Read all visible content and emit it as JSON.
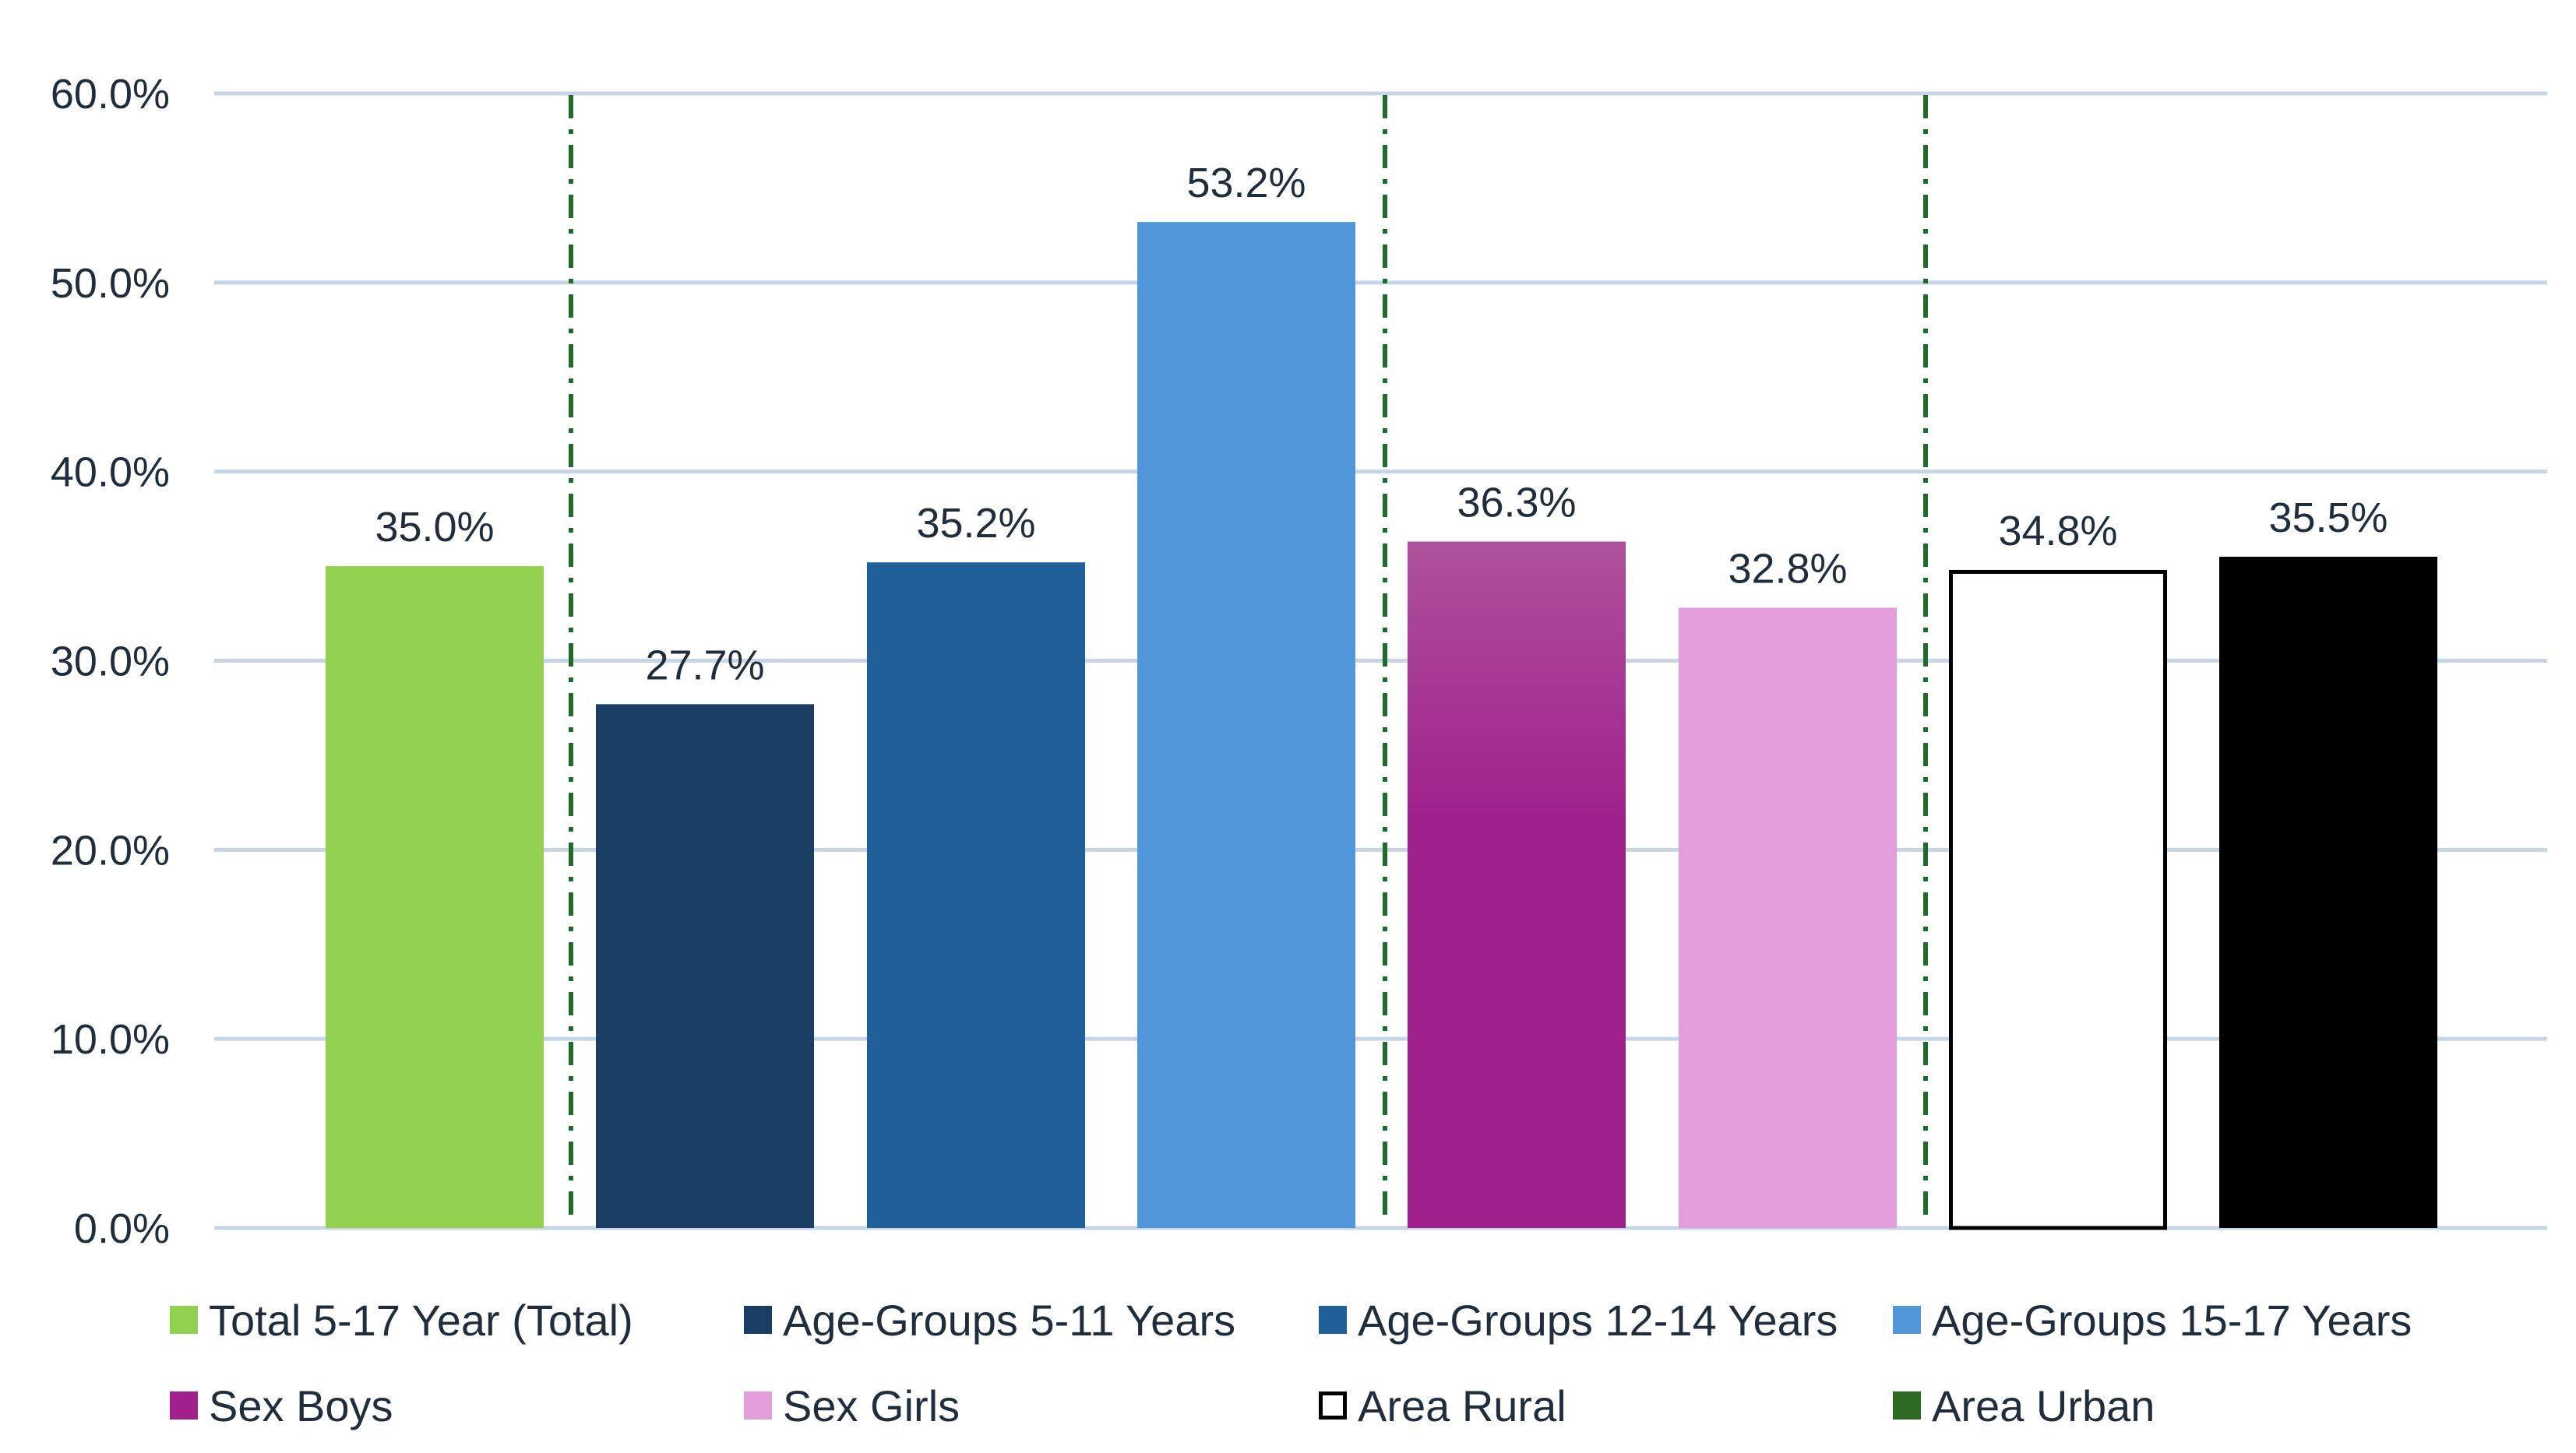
{
  "chart_data": {
    "type": "bar",
    "title": "",
    "xlabel": "",
    "ylabel": "",
    "ylim": [
      0,
      60
    ],
    "y_ticks": [
      "0.0%",
      "10.0%",
      "20.0%",
      "30.0%",
      "40.0%",
      "50.0%",
      "60.0%"
    ],
    "grid": true,
    "legend_position": "bottom",
    "group_separators_after_index": [
      0,
      3,
      5
    ],
    "series": [
      {
        "name": "Total 5-17 Year (Total)",
        "value": 35.0,
        "label": "35.0%",
        "color": "#92d050",
        "legend_color": "#92d050"
      },
      {
        "name": "Age-Groups 5-11 Years",
        "value": 27.7,
        "label": "27.7%",
        "color": "#1a3d63",
        "legend_color": "#1a3d63"
      },
      {
        "name": "Age-Groups 12-14 Years",
        "value": 35.2,
        "label": "35.2%",
        "color": "#215f9a",
        "legend_color": "#215f9a"
      },
      {
        "name": "Age-Groups 15-17 Years",
        "value": 53.2,
        "label": "53.2%",
        "color": "#5196d9",
        "legend_color": "#5196d9"
      },
      {
        "name": "Sex Boys",
        "value": 36.3,
        "label": "36.3%",
        "color": "#a0218c",
        "legend_color": "#a0218c",
        "gradient_top": "#ae519c"
      },
      {
        "name": "Sex Girls",
        "value": 32.8,
        "label": "32.8%",
        "color": "#e39ddb",
        "legend_color": "#e39ddb"
      },
      {
        "name": "Area Rural",
        "value": 34.8,
        "label": "34.8%",
        "color": "#ffffff",
        "legend_color": "#ffffff",
        "outline": "#000000"
      },
      {
        "name": "Area Urban",
        "value": 35.5,
        "label": "35.5%",
        "color": "#000000",
        "legend_color": "#2e6b22"
      }
    ],
    "colors": {
      "gridline": "#c5d5e6",
      "separator": "#1e6b2a",
      "text": "#1f2d3d"
    }
  }
}
